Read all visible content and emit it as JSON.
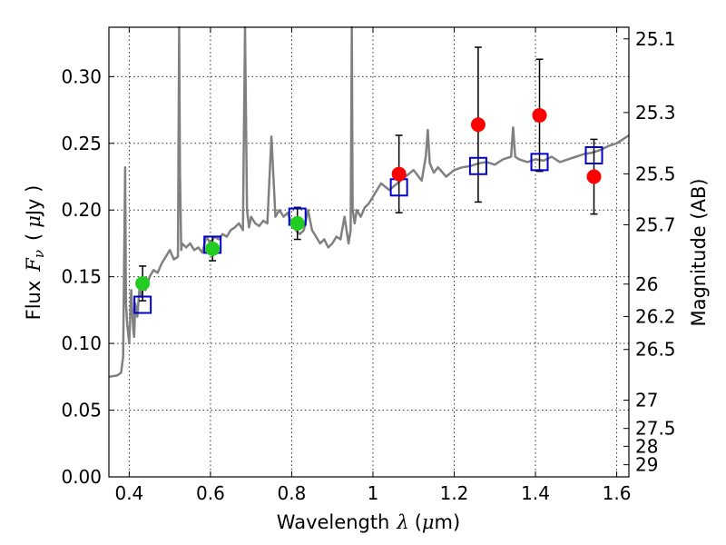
{
  "chart_data": {
    "type": "scatter",
    "xlabel": {
      "prefix": "Wavelength",
      "symbol": "λ",
      "unit_open": "(",
      "unit_mu": "μ",
      "unit_rest": "m)"
    },
    "ylabel": {
      "prefix": "Flux",
      "symbol": "F",
      "subscript": "ν",
      "unit_open": "(",
      "unit_mu": "μ",
      "unit_rest": "Jy )"
    },
    "y2label": "Magnitude (AB)",
    "xlim": [
      0.35,
      1.63
    ],
    "ylim": [
      0.0,
      0.337
    ],
    "grid": true,
    "x_ticks": [
      {
        "value": 0.4,
        "label": "0.4"
      },
      {
        "value": 0.6,
        "label": "0.6"
      },
      {
        "value": 0.8,
        "label": "0.8"
      },
      {
        "value": 1.0,
        "label": "1"
      },
      {
        "value": 1.2,
        "label": "1.2"
      },
      {
        "value": 1.4,
        "label": "1.4"
      },
      {
        "value": 1.6,
        "label": "1.6"
      }
    ],
    "y_ticks": [
      {
        "value": 0.0,
        "label": "0.00"
      },
      {
        "value": 0.05,
        "label": "0.05"
      },
      {
        "value": 0.1,
        "label": "0.10"
      },
      {
        "value": 0.15,
        "label": "0.15"
      },
      {
        "value": 0.2,
        "label": "0.20"
      },
      {
        "value": 0.25,
        "label": "0.25"
      },
      {
        "value": 0.3,
        "label": "0.30"
      }
    ],
    "y2_ticks": [
      {
        "flux": 0.3283,
        "label": "25.1"
      },
      {
        "flux": 0.2731,
        "label": "25.3"
      },
      {
        "flux": 0.2271,
        "label": "25.5"
      },
      {
        "flux": 0.1889,
        "label": "25.7"
      },
      {
        "flux": 0.1445,
        "label": "26"
      },
      {
        "flux": 0.1202,
        "label": "26.2"
      },
      {
        "flux": 0.0955,
        "label": "26.5"
      },
      {
        "flux": 0.0575,
        "label": "27"
      },
      {
        "flux": 0.0363,
        "label": "27.5"
      },
      {
        "flux": 0.0229,
        "label": "28"
      },
      {
        "flux": 0.0091,
        "label": "29"
      }
    ],
    "series": [
      {
        "kind": "line",
        "color": "#808080",
        "x": [
          0.35,
          0.37,
          0.38,
          0.385,
          0.39,
          0.392,
          0.395,
          0.4,
          0.405,
          0.41,
          0.412,
          0.415,
          0.42,
          0.425,
          0.43,
          0.435,
          0.44,
          0.45,
          0.46,
          0.47,
          0.48,
          0.49,
          0.5,
          0.51,
          0.52,
          0.523,
          0.525,
          0.528,
          0.53,
          0.54,
          0.55,
          0.56,
          0.57,
          0.58,
          0.59,
          0.6,
          0.61,
          0.62,
          0.63,
          0.64,
          0.65,
          0.66,
          0.67,
          0.68,
          0.685,
          0.69,
          0.695,
          0.7,
          0.71,
          0.72,
          0.73,
          0.74,
          0.75,
          0.76,
          0.77,
          0.78,
          0.79,
          0.8,
          0.81,
          0.82,
          0.83,
          0.84,
          0.85,
          0.86,
          0.87,
          0.88,
          0.89,
          0.9,
          0.91,
          0.92,
          0.93,
          0.94,
          0.945,
          0.948,
          0.95,
          0.955,
          0.96,
          0.97,
          0.98,
          0.99,
          1.0,
          1.02,
          1.04,
          1.06,
          1.08,
          1.1,
          1.12,
          1.13,
          1.135,
          1.14,
          1.15,
          1.16,
          1.18,
          1.2,
          1.22,
          1.24,
          1.26,
          1.28,
          1.3,
          1.32,
          1.34,
          1.345,
          1.35,
          1.36,
          1.38,
          1.4,
          1.42,
          1.44,
          1.46,
          1.48,
          1.5,
          1.52,
          1.54,
          1.56,
          1.58,
          1.6,
          1.63
        ],
        "y": [
          0.075,
          0.076,
          0.078,
          0.09,
          0.232,
          0.13,
          0.115,
          0.1,
          0.14,
          0.11,
          0.105,
          0.13,
          0.12,
          0.14,
          0.135,
          0.145,
          0.14,
          0.15,
          0.155,
          0.153,
          0.16,
          0.165,
          0.17,
          0.163,
          0.165,
          0.34,
          0.23,
          0.17,
          0.175,
          0.172,
          0.175,
          0.17,
          0.172,
          0.168,
          0.18,
          0.175,
          0.18,
          0.178,
          0.182,
          0.18,
          0.185,
          0.187,
          0.19,
          0.185,
          0.337,
          0.2,
          0.187,
          0.195,
          0.19,
          0.188,
          0.192,
          0.19,
          0.255,
          0.195,
          0.2,
          0.195,
          0.198,
          0.19,
          0.185,
          0.182,
          0.185,
          0.2,
          0.185,
          0.18,
          0.175,
          0.178,
          0.172,
          0.175,
          0.18,
          0.178,
          0.195,
          0.175,
          0.185,
          0.337,
          0.2,
          0.19,
          0.2,
          0.195,
          0.202,
          0.205,
          0.21,
          0.22,
          0.215,
          0.22,
          0.225,
          0.23,
          0.222,
          0.24,
          0.26,
          0.235,
          0.228,
          0.232,
          0.225,
          0.23,
          0.232,
          0.233,
          0.235,
          0.236,
          0.234,
          0.238,
          0.24,
          0.262,
          0.24,
          0.238,
          0.236,
          0.238,
          0.237,
          0.24,
          0.236,
          0.238,
          0.24,
          0.242,
          0.243,
          0.245,
          0.248,
          0.25,
          0.256
        ]
      },
      {
        "kind": "points",
        "marker": "circle",
        "color": "#22cc22",
        "x": [
          0.433,
          0.605,
          0.814
        ],
        "y": [
          0.145,
          0.171,
          0.19
        ],
        "yerr": [
          0.013,
          0.009,
          0.012
        ]
      },
      {
        "kind": "points",
        "marker": "circle",
        "color": "#ff0000",
        "x": [
          1.064,
          1.259,
          1.41,
          1.544
        ],
        "y": [
          0.227,
          0.264,
          0.271,
          0.225
        ],
        "yerr": [
          0.029,
          0.058,
          0.042,
          0.028
        ]
      },
      {
        "kind": "points",
        "marker": "open-square",
        "color": "#0000cc",
        "x": [
          0.433,
          0.605,
          0.814,
          1.064,
          1.259,
          1.41,
          1.544
        ],
        "y": [
          0.129,
          0.174,
          0.195,
          0.217,
          0.233,
          0.236,
          0.241
        ]
      }
    ]
  }
}
